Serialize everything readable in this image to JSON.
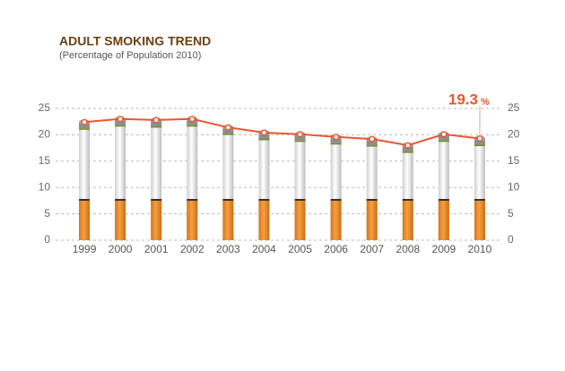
{
  "chart_data": {
    "type": "cigarette-line",
    "title": "ADULT SMOKING TREND",
    "subtitle": "(Percentage of Population 2010)",
    "categories": [
      "1999",
      "2000",
      "2001",
      "2002",
      "2003",
      "2004",
      "2005",
      "2006",
      "2007",
      "2008",
      "2009",
      "2010"
    ],
    "values": [
      22.4,
      23.0,
      22.8,
      23.0,
      21.4,
      20.4,
      20.1,
      19.6,
      19.2,
      18.0,
      20.1,
      19.3
    ],
    "value_labels": [
      null,
      null,
      null,
      null,
      null,
      null,
      null,
      null,
      null,
      null,
      null,
      "19.3"
    ],
    "value_label_unit": "%",
    "color": "#e8562f",
    "ylim": [
      0,
      25
    ],
    "yticks": [
      0,
      5,
      10,
      15,
      20,
      25
    ],
    "y2lim": [
      0,
      25
    ],
    "y2ticks": [
      0,
      5,
      10,
      15,
      20,
      25
    ],
    "grid": true
  }
}
